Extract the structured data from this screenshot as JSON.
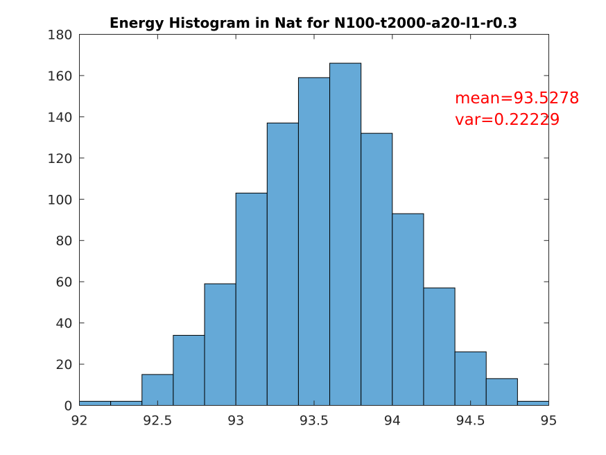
{
  "chart_data": {
    "type": "bar",
    "title": "Energy Histogram in Nat for N100-t2000-a20-l1-r0.3",
    "xlabel": "",
    "ylabel": "",
    "xlim": [
      92,
      95
    ],
    "ylim": [
      0,
      180
    ],
    "bin_width": 0.2,
    "bin_edges": [
      92.0,
      92.2,
      92.4,
      92.6,
      92.8,
      93.0,
      93.2,
      93.4,
      93.6,
      93.8,
      94.0,
      94.2,
      94.4,
      94.6,
      94.8,
      95.0
    ],
    "values": [
      2,
      2,
      15,
      34,
      59,
      103,
      137,
      159,
      166,
      132,
      93,
      57,
      26,
      13,
      2
    ],
    "x_ticks": [
      "92",
      "92.5",
      "93",
      "93.5",
      "94",
      "94.5",
      "95"
    ],
    "y_ticks": [
      "0",
      "20",
      "40",
      "60",
      "80",
      "100",
      "120",
      "140",
      "160",
      "180"
    ],
    "grid": false,
    "bar_color": "#65a9d7",
    "annotations": [
      "mean=93.5278",
      "var=0.22229"
    ],
    "annotation_color": "#ff0000"
  }
}
